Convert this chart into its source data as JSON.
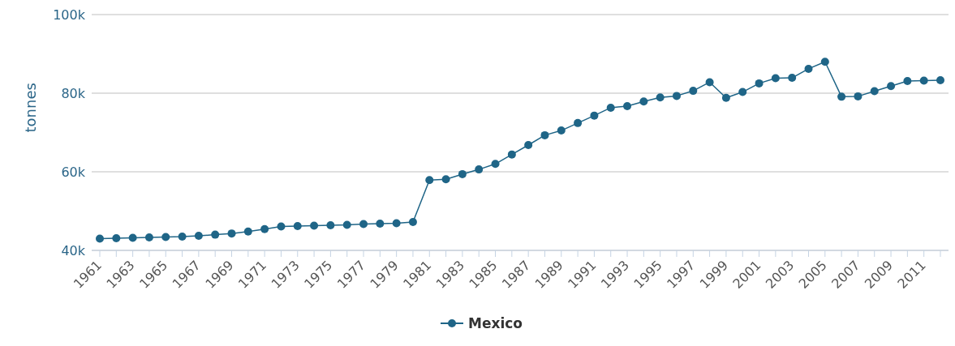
{
  "chart_data": {
    "type": "line",
    "ylabel": "tonnes",
    "categories": [
      "1961",
      null,
      "1963",
      null,
      "1965",
      null,
      "1967",
      null,
      "1969",
      null,
      "1971",
      null,
      "1973",
      null,
      "1975",
      null,
      "1977",
      null,
      "1979",
      null,
      "1981",
      null,
      "1983",
      null,
      "1985",
      null,
      "1987",
      null,
      "1989",
      null,
      "1991",
      null,
      "1993",
      null,
      "1995",
      null,
      "1997",
      null,
      "1999",
      null,
      "2001",
      null,
      "2003",
      null,
      "2005",
      null,
      "2007",
      null,
      "2009",
      null,
      "2011",
      null
    ],
    "series": [
      {
        "name": "Mexico",
        "color": "#1f6587",
        "values": [
          43000,
          43100,
          43200,
          43300,
          43400,
          43500,
          43700,
          44000,
          44300,
          44800,
          45400,
          46100,
          46200,
          46300,
          46400,
          46500,
          46700,
          46800,
          46900,
          47200,
          57900,
          58100,
          59400,
          60600,
          62000,
          64400,
          66800,
          69300,
          70500,
          72400,
          74300,
          76300,
          76700,
          77900,
          78900,
          79300,
          80600,
          82800,
          78800,
          80300,
          82500,
          83800,
          83900,
          86200,
          88000,
          79100,
          79200,
          80500,
          81800,
          83100,
          83200,
          83300
        ]
      }
    ],
    "ylim": [
      40000,
      100000
    ],
    "yticks": [
      {
        "value": 40000,
        "label": "40k"
      },
      {
        "value": 60000,
        "label": "60k"
      },
      {
        "value": 80000,
        "label": "80k"
      },
      {
        "value": 100000,
        "label": "100k"
      }
    ],
    "grid": "y",
    "legend": "bottom",
    "marker": "circle",
    "line_style": "solid"
  }
}
